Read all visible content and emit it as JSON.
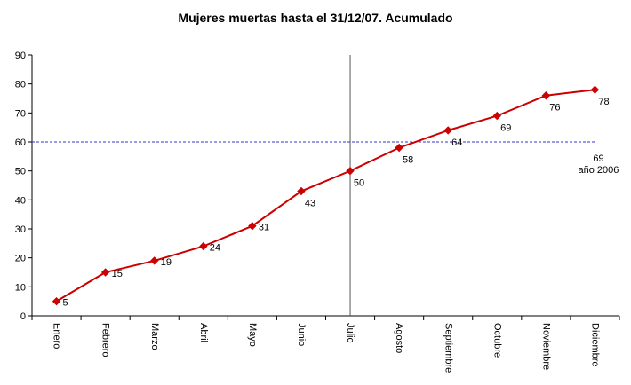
{
  "chart_data": {
    "type": "line",
    "title": "Mujeres muertas hasta el 31/12/07. Acumulado",
    "xlabel": "",
    "ylabel": "",
    "categories": [
      "Enero",
      "Febrero",
      "Marzo",
      "Abril",
      "Mayo",
      "Junio",
      "Julio",
      "Agosto",
      "Septiembre",
      "Octubre",
      "Noviembre",
      "Diciembre"
    ],
    "series": [
      {
        "values": [
          5,
          15,
          19,
          24,
          31,
          43,
          50,
          58,
          64,
          69,
          76,
          78
        ],
        "color": "#cc0000",
        "marker": "diamond"
      }
    ],
    "data_labels": [
      "5",
      "15",
      "19",
      "24",
      "31",
      "43",
      "50",
      "58",
      "64",
      "69",
      "76",
      "78"
    ],
    "ylim": [
      0,
      90
    ],
    "yticks": [
      0,
      10,
      20,
      30,
      40,
      50,
      60,
      70,
      80,
      90
    ],
    "reference_line": {
      "value": 60,
      "color": "#3333cc",
      "style": "dashed",
      "label_lines": [
        "69",
        "año 2006"
      ]
    },
    "vertical_marker_category": "Julio",
    "grid": false,
    "legend": "none"
  }
}
